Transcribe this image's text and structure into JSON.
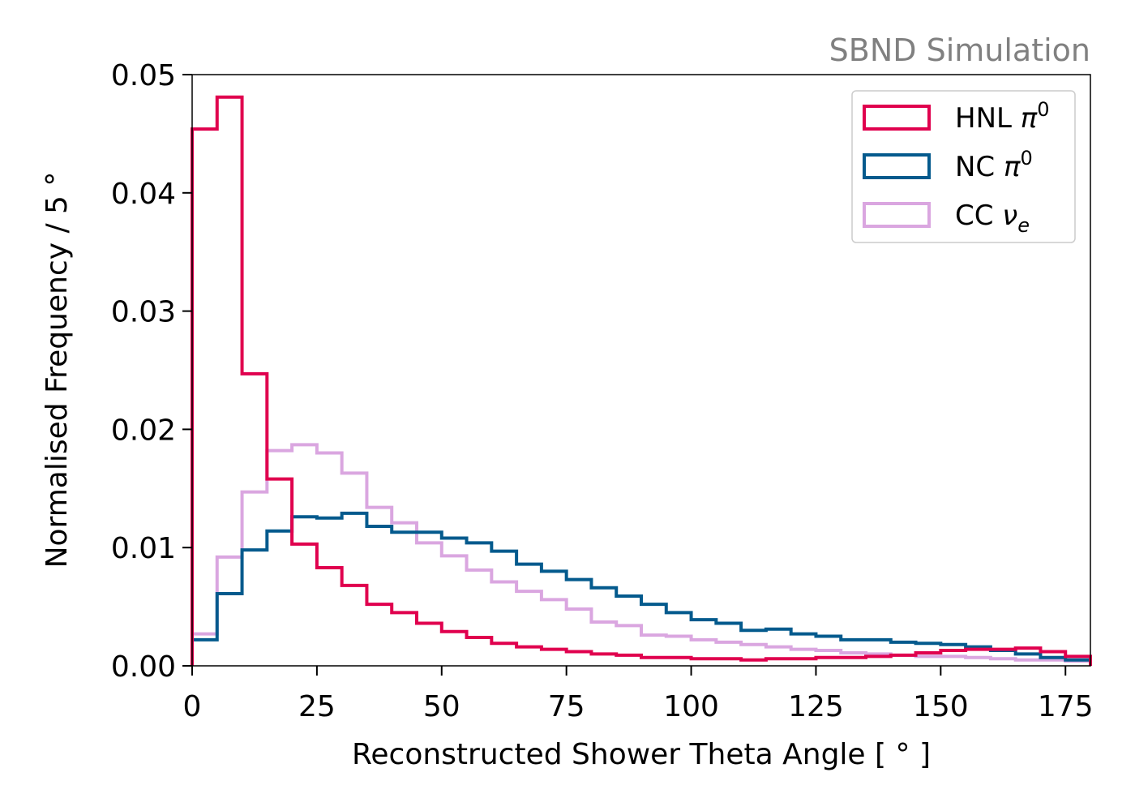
{
  "chart_data": {
    "type": "step-histogram",
    "annotation": "SBND Simulation",
    "xlabel": "Reconstructed Shower Theta Angle [ ° ]",
    "ylabel": "Normalised Frequency / 5 °",
    "xlim": [
      0,
      180
    ],
    "ylim": [
      0,
      0.05
    ],
    "xticks": [
      0,
      25,
      50,
      75,
      100,
      125,
      150,
      175
    ],
    "yticks": [
      0.0,
      0.01,
      0.02,
      0.03,
      0.04,
      0.05
    ],
    "ytick_labels": [
      "0.00",
      "0.01",
      "0.02",
      "0.03",
      "0.04",
      "0.05"
    ],
    "legend_position": "top-right",
    "bin_edges": [
      0,
      5,
      10,
      15,
      20,
      25,
      30,
      35,
      40,
      45,
      50,
      55,
      60,
      65,
      70,
      75,
      80,
      85,
      90,
      95,
      100,
      105,
      110,
      115,
      120,
      125,
      130,
      135,
      140,
      145,
      150,
      155,
      160,
      165,
      170,
      175,
      180
    ],
    "series": [
      {
        "name": "HNL",
        "symbol": "π",
        "superscript": "0",
        "color": "#e0004e",
        "values": [
          0.0454,
          0.0481,
          0.0247,
          0.0158,
          0.0103,
          0.0083,
          0.0068,
          0.0052,
          0.0045,
          0.0036,
          0.0029,
          0.0024,
          0.0019,
          0.0016,
          0.0014,
          0.0012,
          0.001,
          0.0009,
          0.0007,
          0.0007,
          0.0006,
          0.0006,
          0.0005,
          0.0006,
          0.0006,
          0.0007,
          0.0007,
          0.0008,
          0.0009,
          0.0011,
          0.0013,
          0.0014,
          0.0014,
          0.0015,
          0.0012,
          0.0008
        ]
      },
      {
        "name": "NC",
        "symbol": "π",
        "superscript": "0",
        "color": "#045a8d",
        "values": [
          0.0022,
          0.0061,
          0.0098,
          0.0114,
          0.0126,
          0.0125,
          0.0129,
          0.0118,
          0.0113,
          0.0113,
          0.0108,
          0.0104,
          0.0097,
          0.0086,
          0.008,
          0.0073,
          0.0066,
          0.0059,
          0.0052,
          0.0045,
          0.0039,
          0.0036,
          0.003,
          0.0031,
          0.0027,
          0.0025,
          0.0022,
          0.0022,
          0.002,
          0.0019,
          0.0018,
          0.0016,
          0.0013,
          0.001,
          0.0007,
          0.0005
        ]
      },
      {
        "name": "CC",
        "symbol": "ν",
        "subscript": "e",
        "color": "#daa6e0",
        "values": [
          0.0027,
          0.0092,
          0.0147,
          0.0182,
          0.0187,
          0.018,
          0.0163,
          0.0134,
          0.0121,
          0.0104,
          0.0093,
          0.0081,
          0.0071,
          0.0063,
          0.0056,
          0.0048,
          0.0037,
          0.0034,
          0.0026,
          0.0025,
          0.0022,
          0.002,
          0.0018,
          0.0016,
          0.0014,
          0.0013,
          0.0011,
          0.001,
          0.0009,
          0.0008,
          0.0008,
          0.0007,
          0.0006,
          0.0005,
          0.0005,
          0.0004
        ]
      }
    ]
  }
}
